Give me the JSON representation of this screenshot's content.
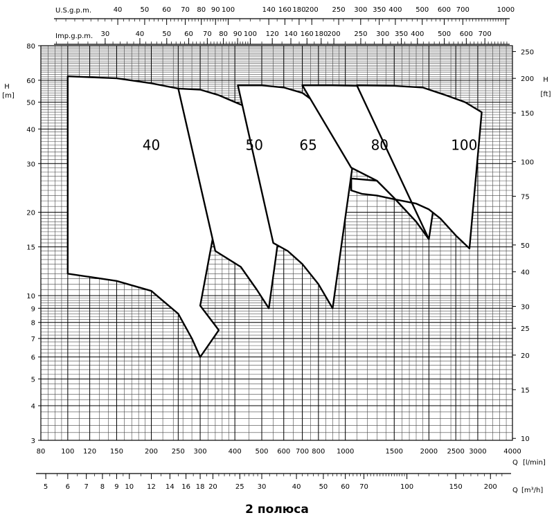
{
  "footer": "2 полюса",
  "chart_data": {
    "type": "line",
    "title": "",
    "x_scale": "log",
    "y_scale": "log",
    "xlim": [
      80,
      4000
    ],
    "ylim": [
      3,
      80
    ],
    "grid": true,
    "axes": {
      "left": {
        "label": "H",
        "unit": "[m]",
        "ticks": [
          {
            "v": 80,
            "t": "80"
          },
          {
            "v": 60,
            "t": "60"
          },
          {
            "v": 50,
            "t": "50"
          },
          {
            "v": 40,
            "t": "40"
          },
          {
            "v": 30,
            "t": "30"
          },
          {
            "v": 20,
            "t": "20"
          },
          {
            "v": 15,
            "t": "15"
          },
          {
            "v": 10,
            "t": "10"
          },
          {
            "v": 9,
            "t": "9"
          },
          {
            "v": 8,
            "t": "8"
          },
          {
            "v": 7,
            "t": "7"
          },
          {
            "v": 6,
            "t": "6"
          },
          {
            "v": 5,
            "t": "5"
          },
          {
            "v": 4,
            "t": "4"
          },
          {
            "v": 3,
            "t": "3"
          }
        ]
      },
      "right": {
        "label": "H",
        "unit": "[ft]",
        "ticks": [
          {
            "v": 76.2,
            "t": "250"
          },
          {
            "v": 60.96,
            "t": "200"
          },
          {
            "v": 45.72,
            "t": "150"
          },
          {
            "v": 30.48,
            "t": "100"
          },
          {
            "v": 22.86,
            "t": "75"
          },
          {
            "v": 15.24,
            "t": "50"
          },
          {
            "v": 12.19,
            "t": "40"
          },
          {
            "v": 9.144,
            "t": "30"
          },
          {
            "v": 7.62,
            "t": "25"
          },
          {
            "v": 6.096,
            "t": "20"
          },
          {
            "v": 4.572,
            "t": "15"
          },
          {
            "v": 3.048,
            "t": "10"
          }
        ]
      },
      "bottom": {
        "label": "Q",
        "unit": "[l/min]",
        "ticks": [
          {
            "v": 80,
            "t": "80"
          },
          {
            "v": 100,
            "t": "100"
          },
          {
            "v": 120,
            "t": "120"
          },
          {
            "v": 150,
            "t": "150"
          },
          {
            "v": 200,
            "t": "200"
          },
          {
            "v": 250,
            "t": "250"
          },
          {
            "v": 300,
            "t": "300"
          },
          {
            "v": 400,
            "t": "400"
          },
          {
            "v": 500,
            "t": "500"
          },
          {
            "v": 600,
            "t": "600"
          },
          {
            "v": 700,
            "t": "700"
          },
          {
            "v": 800,
            "t": "800"
          },
          {
            "v": 1000,
            "t": "1000"
          },
          {
            "v": 1500,
            "t": "1500"
          },
          {
            "v": 2000,
            "t": "2000"
          },
          {
            "v": 2500,
            "t": "2500"
          },
          {
            "v": 3000,
            "t": "3000"
          },
          {
            "v": 4000,
            "t": "4000"
          }
        ]
      },
      "bottom2": {
        "label": "Q",
        "unit": "[m³/h]",
        "ticks": [
          {
            "v": 5,
            "t": "5"
          },
          {
            "v": 6,
            "t": "6"
          },
          {
            "v": 7,
            "t": "7"
          },
          {
            "v": 8,
            "t": "8"
          },
          {
            "v": 9,
            "t": "9"
          },
          {
            "v": 10,
            "t": "10"
          },
          {
            "v": 12,
            "t": "12"
          },
          {
            "v": 14,
            "t": "14"
          },
          {
            "v": 16,
            "t": "16"
          },
          {
            "v": 18,
            "t": "18"
          },
          {
            "v": 20,
            "t": "20"
          },
          {
            "v": 25,
            "t": "25"
          },
          {
            "v": 30,
            "t": "30"
          },
          {
            "v": 40,
            "t": "40"
          },
          {
            "v": 50,
            "t": "50"
          },
          {
            "v": 60,
            "t": "60"
          },
          {
            "v": 70,
            "t": "70"
          },
          {
            "v": 100,
            "t": "100"
          },
          {
            "v": 150,
            "t": "150"
          },
          {
            "v": 200,
            "t": "200"
          }
        ]
      },
      "top": {
        "label": "U.S.g.p.m.",
        "ticks": [
          {
            "v": 40,
            "t": "40"
          },
          {
            "v": 50,
            "t": "50"
          },
          {
            "v": 60,
            "t": "60"
          },
          {
            "v": 70,
            "t": "70"
          },
          {
            "v": 80,
            "t": "80"
          },
          {
            "v": 90,
            "t": "90"
          },
          {
            "v": 100,
            "t": "100"
          },
          {
            "v": 140,
            "t": "140"
          },
          {
            "v": 160,
            "t": "160"
          },
          {
            "v": 180,
            "t": "180"
          },
          {
            "v": 200,
            "t": "200"
          },
          {
            "v": 250,
            "t": "250"
          },
          {
            "v": 300,
            "t": "300"
          },
          {
            "v": 350,
            "t": "350"
          },
          {
            "v": 400,
            "t": "400"
          },
          {
            "v": 500,
            "t": "500"
          },
          {
            "v": 600,
            "t": "600"
          },
          {
            "v": 700,
            "t": "700"
          },
          {
            "v": 1000,
            "t": "1000"
          }
        ]
      },
      "top2": {
        "label": "Imp.g.p.m.",
        "ticks": [
          {
            "v": 30,
            "t": "30"
          },
          {
            "v": 40,
            "t": "40"
          },
          {
            "v": 50,
            "t": "50"
          },
          {
            "v": 60,
            "t": "60"
          },
          {
            "v": 70,
            "t": "70"
          },
          {
            "v": 80,
            "t": "80"
          },
          {
            "v": 90,
            "t": "90"
          },
          {
            "v": 100,
            "t": "100"
          },
          {
            "v": 120,
            "t": "120"
          },
          {
            "v": 140,
            "t": "140"
          },
          {
            "v": 160,
            "t": "160"
          },
          {
            "v": 180,
            "t": "180"
          },
          {
            "v": 200,
            "t": "200"
          },
          {
            "v": 250,
            "t": "250"
          },
          {
            "v": 300,
            "t": "300"
          },
          {
            "v": 350,
            "t": "350"
          },
          {
            "v": 400,
            "t": "400"
          },
          {
            "v": 500,
            "t": "500"
          },
          {
            "v": 600,
            "t": "600"
          },
          {
            "v": 700,
            "t": "700"
          }
        ]
      }
    },
    "series": [
      {
        "name": "40",
        "label_at": [
          200,
          35
        ],
        "outline": [
          [
            100,
            62
          ],
          [
            150,
            61
          ],
          [
            200,
            58.5
          ],
          [
            250,
            56
          ],
          [
            300,
            53
          ],
          [
            340,
            51
          ],
          [
            410,
            49.5
          ],
          [
            300,
            9.2
          ],
          [
            350,
            7.5
          ],
          [
            300,
            6.0
          ],
          [
            280,
            7.0
          ],
          [
            250,
            8.6
          ],
          [
            200,
            10.4
          ],
          [
            150,
            11.3
          ],
          [
            100,
            12.0
          ]
        ]
      },
      {
        "name": "50",
        "label_at": [
          470,
          35
        ],
        "outline": [
          [
            250,
            56
          ],
          [
            300,
            55.5
          ],
          [
            350,
            53
          ],
          [
            420,
            49
          ],
          [
            500,
            45
          ],
          [
            550,
            42
          ],
          [
            650,
            40
          ],
          [
            530,
            9.0
          ],
          [
            480,
            10.5
          ],
          [
            420,
            12.7
          ],
          [
            340,
            14.5
          ]
        ]
      },
      {
        "name": "65",
        "label_at": [
          735,
          35
        ],
        "outline": [
          [
            410,
            57.5
          ],
          [
            500,
            57.5
          ],
          [
            600,
            56.5
          ],
          [
            700,
            54
          ],
          [
            800,
            49
          ],
          [
            900,
            44
          ],
          [
            1100,
            38
          ],
          [
            900,
            9.0
          ],
          [
            800,
            11.0
          ],
          [
            700,
            13.0
          ],
          [
            620,
            14.5
          ],
          [
            550,
            15.5
          ]
        ]
      },
      {
        "name": "80",
        "label_at": [
          1330,
          35
        ],
        "outline": [
          [
            700,
            57.5
          ],
          [
            900,
            57.5
          ],
          [
            1100,
            57.3
          ],
          [
            1300,
            56
          ],
          [
            1500,
            54
          ],
          [
            1700,
            49
          ],
          [
            2000,
            44
          ],
          [
            2300,
            41
          ],
          [
            2000,
            16.0
          ],
          [
            1800,
            18.5
          ],
          [
            1500,
            22.5
          ],
          [
            1300,
            26.0
          ],
          [
            1050,
            29.0
          ]
        ]
      },
      {
        "name": "100",
        "label_at": [
          2680,
          35
        ],
        "outline": [
          [
            1100,
            57.5
          ],
          [
            1500,
            57.3
          ],
          [
            1900,
            56.5
          ],
          [
            2300,
            53
          ],
          [
            2700,
            50
          ],
          [
            3100,
            46
          ],
          [
            2800,
            14.8
          ],
          [
            2500,
            16.5
          ],
          [
            2200,
            19.0
          ],
          [
            2000,
            20.5
          ],
          [
            1800,
            21.5
          ],
          [
            1500,
            22.3
          ],
          [
            1300,
            23.0
          ],
          [
            1150,
            23.3
          ],
          [
            1050,
            24.0
          ],
          [
            1050,
            26.5
          ],
          [
            1300,
            26.0
          ],
          [
            1500,
            22.5
          ],
          [
            1800,
            18.5
          ],
          [
            2000,
            16.0
          ]
        ]
      }
    ]
  }
}
